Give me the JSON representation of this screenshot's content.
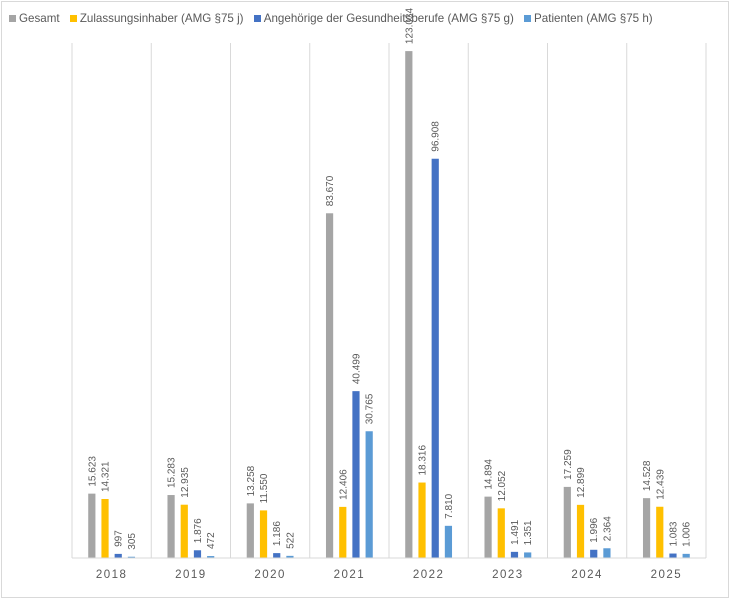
{
  "chart_data": {
    "type": "bar",
    "title": "",
    "xlabel": "",
    "ylabel": "",
    "ylim": [
      0,
      125000
    ],
    "grid": "vertical category separators",
    "legend_position": "top",
    "categories": [
      "2018",
      "2019",
      "2020",
      "2021",
      "2022",
      "2023",
      "2024",
      "2025"
    ],
    "series": [
      {
        "name": "Gesamt",
        "color": "#a5a5a5",
        "values": [
          15623,
          15283,
          13258,
          83670,
          123034,
          14894,
          17259,
          14528
        ],
        "labels": [
          "15.623",
          "15.283",
          "13.258",
          "83.670",
          "123.034",
          "14.894",
          "17.259",
          "14.528"
        ]
      },
      {
        "name": "Zulassungsinhaber (AMG §75 j)",
        "color": "#ffc000",
        "values": [
          14321,
          12935,
          11550,
          12406,
          18316,
          12052,
          12899,
          12439
        ],
        "labels": [
          "14.321",
          "12.935",
          "11.550",
          "12.406",
          "18.316",
          "12.052",
          "12.899",
          "12.439"
        ]
      },
      {
        "name": "Angehörige der Gesundheitsberufe (AMG §75 g)",
        "color": "#4472c4",
        "values": [
          997,
          1876,
          1186,
          40499,
          96908,
          1491,
          1996,
          1083
        ],
        "labels": [
          "997",
          "1.876",
          "1.186",
          "40.499",
          "96.908",
          "1.491",
          "1.996",
          "1.083"
        ]
      },
      {
        "name": "Patienten (AMG §75 h)",
        "color": "#5b9bd5",
        "values": [
          305,
          472,
          522,
          30765,
          7810,
          1351,
          2364,
          1006
        ],
        "labels": [
          "305",
          "472",
          "522",
          "30.765",
          "7.810",
          "1.351",
          "2.364",
          "1.006"
        ]
      }
    ]
  }
}
